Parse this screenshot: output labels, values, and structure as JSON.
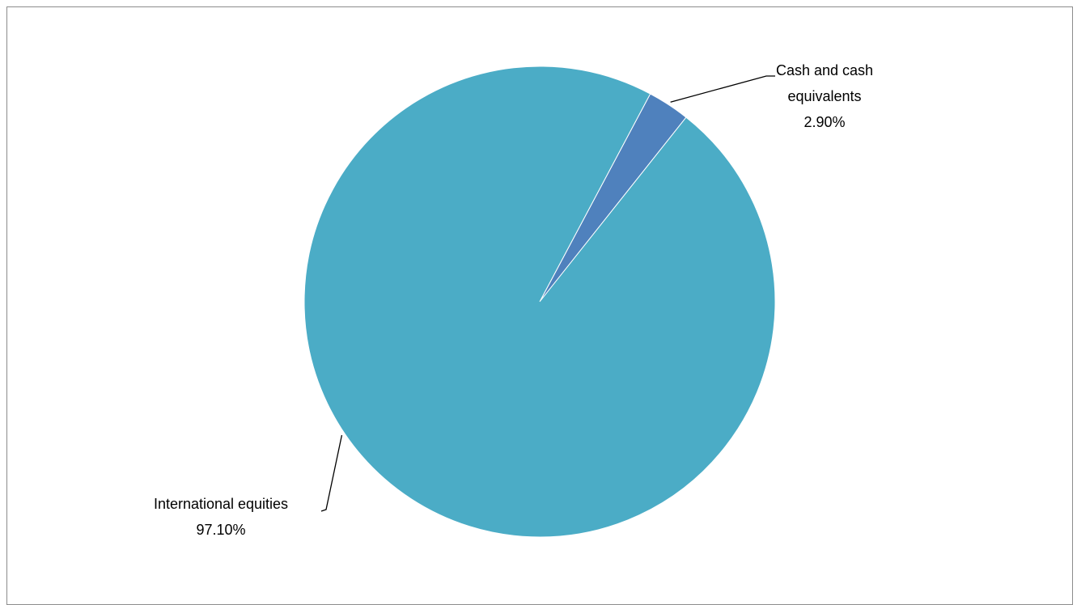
{
  "chart_data": {
    "type": "pie",
    "title": "",
    "start_angle_deg": 28,
    "direction": "clockwise",
    "slices": [
      {
        "name": "Cash and cash equivalents",
        "value": 2.9,
        "value_label": "2.90%",
        "label_lines": [
          "Cash and cash",
          "equivalents",
          "2.90%"
        ],
        "color": "#4F81BD"
      },
      {
        "name": "International equities",
        "value": 97.1,
        "value_label": "97.10%",
        "label_lines": [
          "International equities",
          "97.10%"
        ],
        "color": "#4BACC6"
      }
    ],
    "legend": "none",
    "slice_border_color": "#ffffff"
  }
}
